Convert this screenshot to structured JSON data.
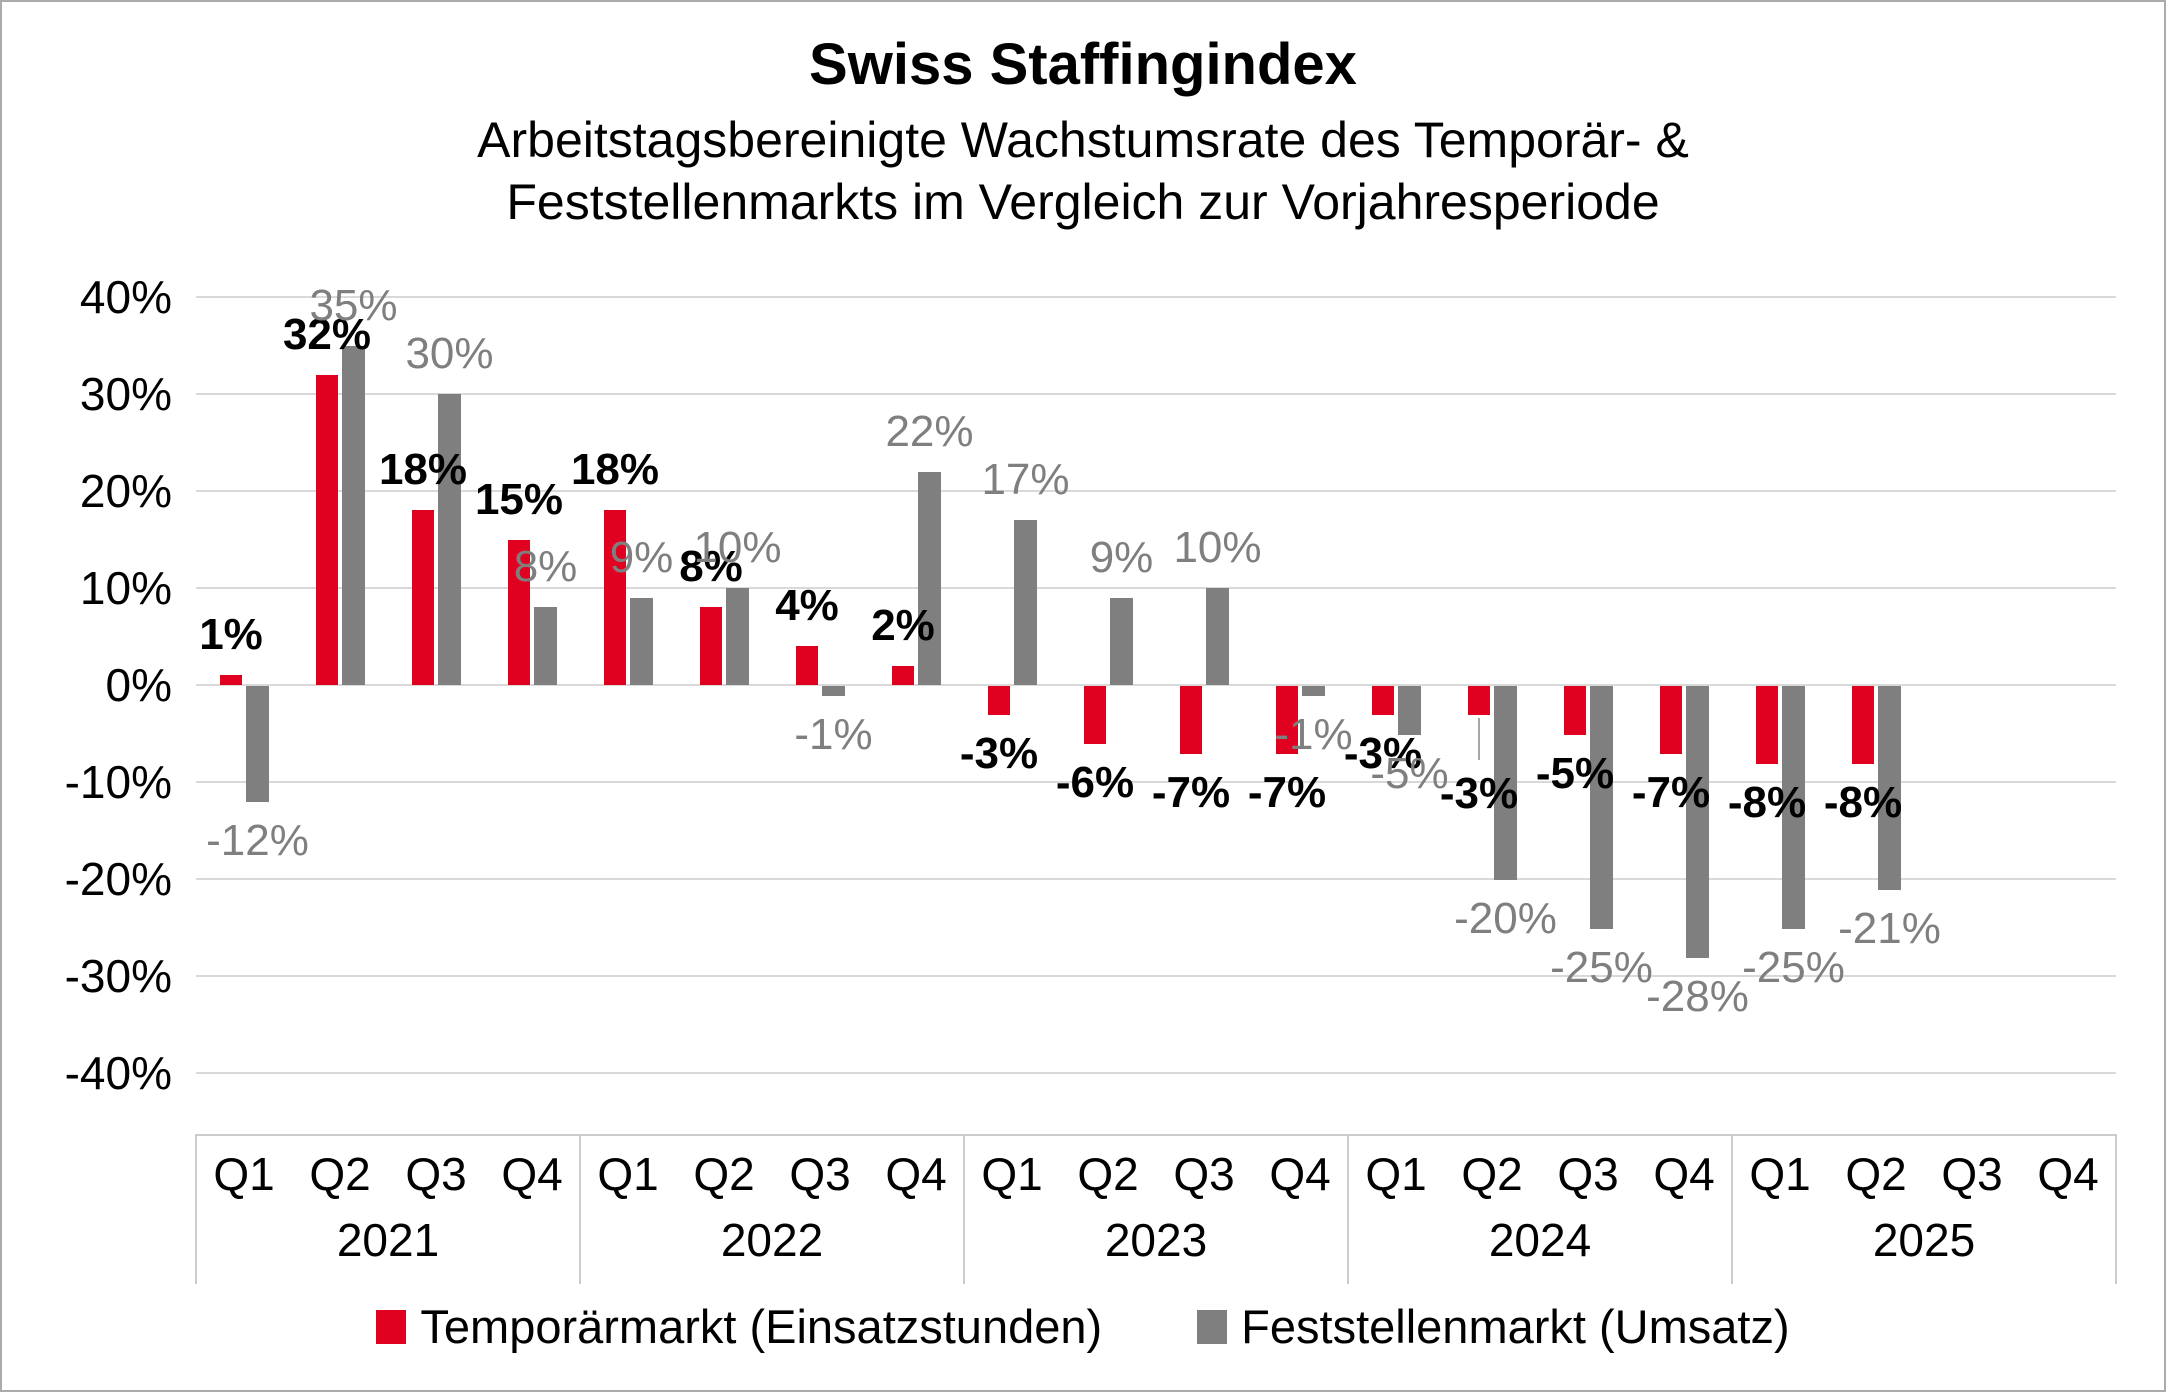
{
  "header": {
    "title": "Swiss Staffingindex",
    "subtitle_line1": "Arbeitstagsbereinigte Wachstumsrate des Temporär- &",
    "subtitle_line2": "Feststellenmarkts im Vergleich zur Vorjahresperiode"
  },
  "legend": {
    "items": [
      {
        "label": "Temporärmarkt (Einsatzstunden)",
        "color": "#e00020"
      },
      {
        "label": "Feststellenmarkt (Umsatz)",
        "color": "#7f7f7f"
      }
    ]
  },
  "colors": {
    "temporaermarkt_red": "#e00020",
    "feststellenmarkt_gray": "#7f7f7f",
    "gridline": "#d9d9d9",
    "axis_line": "#cccccc",
    "data_label_gray": "#7f7f7f"
  },
  "chart_data": {
    "type": "bar",
    "title": "Swiss Staffingindex",
    "subtitle": "Arbeitstagsbereinigte Wachstumsrate des Temporär- & Feststellenmarkts im Vergleich zur Vorjahresperiode",
    "unit": "percent",
    "ylim": [
      -40,
      40
    ],
    "ytick_step": 10,
    "ytick_labels": [
      "40%",
      "30%",
      "20%",
      "10%",
      "0%",
      "-10%",
      "-20%",
      "-30%",
      "-40%"
    ],
    "grid": true,
    "legend_position": "bottom",
    "years": [
      "2021",
      "2022",
      "2023",
      "2024",
      "2025"
    ],
    "quarters_per_year": [
      "Q1",
      "Q2",
      "Q3",
      "Q4"
    ],
    "categories": [
      "2021 Q1",
      "2021 Q2",
      "2021 Q3",
      "2021 Q4",
      "2022 Q1",
      "2022 Q2",
      "2022 Q3",
      "2022 Q4",
      "2023 Q1",
      "2023 Q2",
      "2023 Q3",
      "2023 Q4",
      "2024 Q1",
      "2024 Q2",
      "2024 Q3",
      "2024 Q4",
      "2025 Q1",
      "2025 Q2",
      "2025 Q3",
      "2025 Q4"
    ],
    "series": [
      {
        "name": "Temporärmarkt (Einsatzstunden)",
        "color": "#e00020",
        "values": [
          1,
          32,
          18,
          15,
          18,
          8,
          4,
          2,
          -3,
          -6,
          -7,
          -7,
          -3,
          -3,
          -5,
          -7,
          -8,
          -8,
          null,
          null
        ],
        "labels": [
          "1%",
          "32%",
          "18%",
          "15%",
          "18%",
          "8%",
          "4%",
          "2%",
          "-3%",
          "-6%",
          "-7%",
          "-7%",
          "-3%",
          "-3%",
          "-5%",
          "-7%",
          "-8%",
          "-8%",
          "",
          ""
        ]
      },
      {
        "name": "Feststellenmarkt (Umsatz)",
        "color": "#7f7f7f",
        "values": [
          -12,
          35,
          30,
          8,
          9,
          10,
          -1,
          22,
          17,
          9,
          10,
          -1,
          -5,
          -20,
          -25,
          -28,
          -25,
          -21,
          null,
          null
        ],
        "labels": [
          "-12%",
          "35%",
          "30%",
          "8%",
          "9%",
          "10%",
          "-1%",
          "22%",
          "17%",
          "9%",
          "10%",
          "-1%",
          "-5%",
          "-20%",
          "-25%",
          "-28%",
          "-25%",
          "-21%",
          "",
          ""
        ]
      }
    ],
    "annotations": {
      "leader_label": {
        "series": 0,
        "index": 13
      }
    }
  }
}
